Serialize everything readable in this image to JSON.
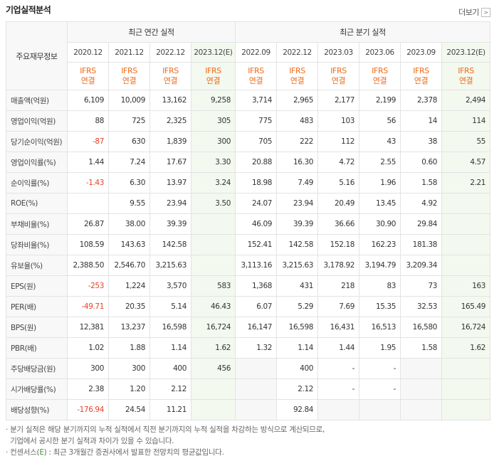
{
  "title": "기업실적분석",
  "more_label": "더보기",
  "header": {
    "row_label": "주요재무정보",
    "annual_group": "최근 연간 실적",
    "quarter_group": "최근 분기 실적",
    "annual_periods": [
      "2020.12",
      "2021.12",
      "2022.12",
      "2023.12(E)"
    ],
    "quarter_periods": [
      "2022.09",
      "2022.12",
      "2023.03",
      "2023.06",
      "2023.09",
      "2023.12(E)"
    ],
    "standard_top": "IFRS",
    "standard_bottom": "연결"
  },
  "rows": [
    {
      "label": "매출액(억원)",
      "annual": [
        "6,109",
        "10,009",
        "13,162",
        "9,258"
      ],
      "quarter": [
        "3,714",
        "2,965",
        "2,177",
        "2,199",
        "2,378",
        "2,494"
      ]
    },
    {
      "label": "영업이익(억원)",
      "annual": [
        "88",
        "725",
        "2,325",
        "305"
      ],
      "quarter": [
        "775",
        "483",
        "103",
        "56",
        "14",
        "114"
      ]
    },
    {
      "label": "당기순이익(억원)",
      "annual": [
        "-87",
        "630",
        "1,839",
        "300"
      ],
      "quarter": [
        "705",
        "222",
        "112",
        "43",
        "38",
        "55"
      ]
    },
    {
      "label": "영업이익률(%)",
      "annual": [
        "1.44",
        "7.24",
        "17.67",
        "3.30"
      ],
      "quarter": [
        "20.88",
        "16.30",
        "4.72",
        "2.55",
        "0.60",
        "4.57"
      ]
    },
    {
      "label": "순이익률(%)",
      "annual": [
        "-1.43",
        "6.30",
        "13.97",
        "3.24"
      ],
      "quarter": [
        "18.98",
        "7.49",
        "5.16",
        "1.96",
        "1.58",
        "2.21"
      ]
    },
    {
      "label": "ROE(%)",
      "annual": [
        "",
        "9.55",
        "23.94",
        "3.50"
      ],
      "quarter": [
        "24.07",
        "23.94",
        "20.49",
        "13.45",
        "4.92",
        ""
      ]
    },
    {
      "label": "부채비율(%)",
      "annual": [
        "26.87",
        "38.00",
        "39.39",
        ""
      ],
      "quarter": [
        "46.09",
        "39.39",
        "36.66",
        "30.90",
        "29.84",
        ""
      ]
    },
    {
      "label": "당좌비율(%)",
      "annual": [
        "108.59",
        "143.63",
        "142.58",
        ""
      ],
      "quarter": [
        "152.41",
        "142.58",
        "152.18",
        "162.23",
        "181.38",
        ""
      ]
    },
    {
      "label": "유보율(%)",
      "annual": [
        "2,388.50",
        "2,546.70",
        "3,215.63",
        ""
      ],
      "quarter": [
        "3,113.16",
        "3,215.63",
        "3,178.92",
        "3,194.79",
        "3,209.34",
        ""
      ]
    },
    {
      "label": "EPS(원)",
      "annual": [
        "-253",
        "1,224",
        "3,570",
        "583"
      ],
      "quarter": [
        "1,368",
        "431",
        "218",
        "83",
        "73",
        "163"
      ]
    },
    {
      "label": "PER(배)",
      "annual": [
        "-49.71",
        "20.35",
        "5.14",
        "46.43"
      ],
      "quarter": [
        "6.07",
        "5.29",
        "7.69",
        "15.35",
        "32.53",
        "165.49"
      ]
    },
    {
      "label": "BPS(원)",
      "annual": [
        "12,381",
        "13,237",
        "16,598",
        "16,724"
      ],
      "quarter": [
        "16,147",
        "16,598",
        "16,431",
        "16,513",
        "16,580",
        "16,724"
      ]
    },
    {
      "label": "PBR(배)",
      "annual": [
        "1.02",
        "1.88",
        "1.14",
        "1.62"
      ],
      "quarter": [
        "1.32",
        "1.14",
        "1.44",
        "1.95",
        "1.58",
        "1.62"
      ]
    },
    {
      "label": "주당배당금(원)",
      "annual": [
        "300",
        "300",
        "400",
        "456"
      ],
      "quarter": [
        "",
        "400",
        "-",
        "-",
        "",
        ""
      ]
    },
    {
      "label": "시가배당률(%)",
      "annual": [
        "2.38",
        "1.20",
        "2.12",
        ""
      ],
      "quarter": [
        "",
        "2.12",
        "-",
        "-",
        "",
        ""
      ]
    },
    {
      "label": "배당성향(%)",
      "annual": [
        "-176.94",
        "24.54",
        "11.21",
        ""
      ],
      "quarter": [
        "",
        "92.84",
        "",
        "",
        "",
        ""
      ]
    }
  ],
  "notes": {
    "line1": "· 분기 실적은 해당 분기까지의 누적 실적에서 직전 분기까지의 누적 실적을 차감하는 방식으로 계산되므로,",
    "line2": "  기업에서 공시한 분기 실적과 차이가 있을 수 있습니다.",
    "line3_pre": "· 컨센서스(",
    "line3_e": "E",
    "line3_post": ") : 최근 3개월간 증권사에서 발표한 전망치의 평균값입니다."
  }
}
